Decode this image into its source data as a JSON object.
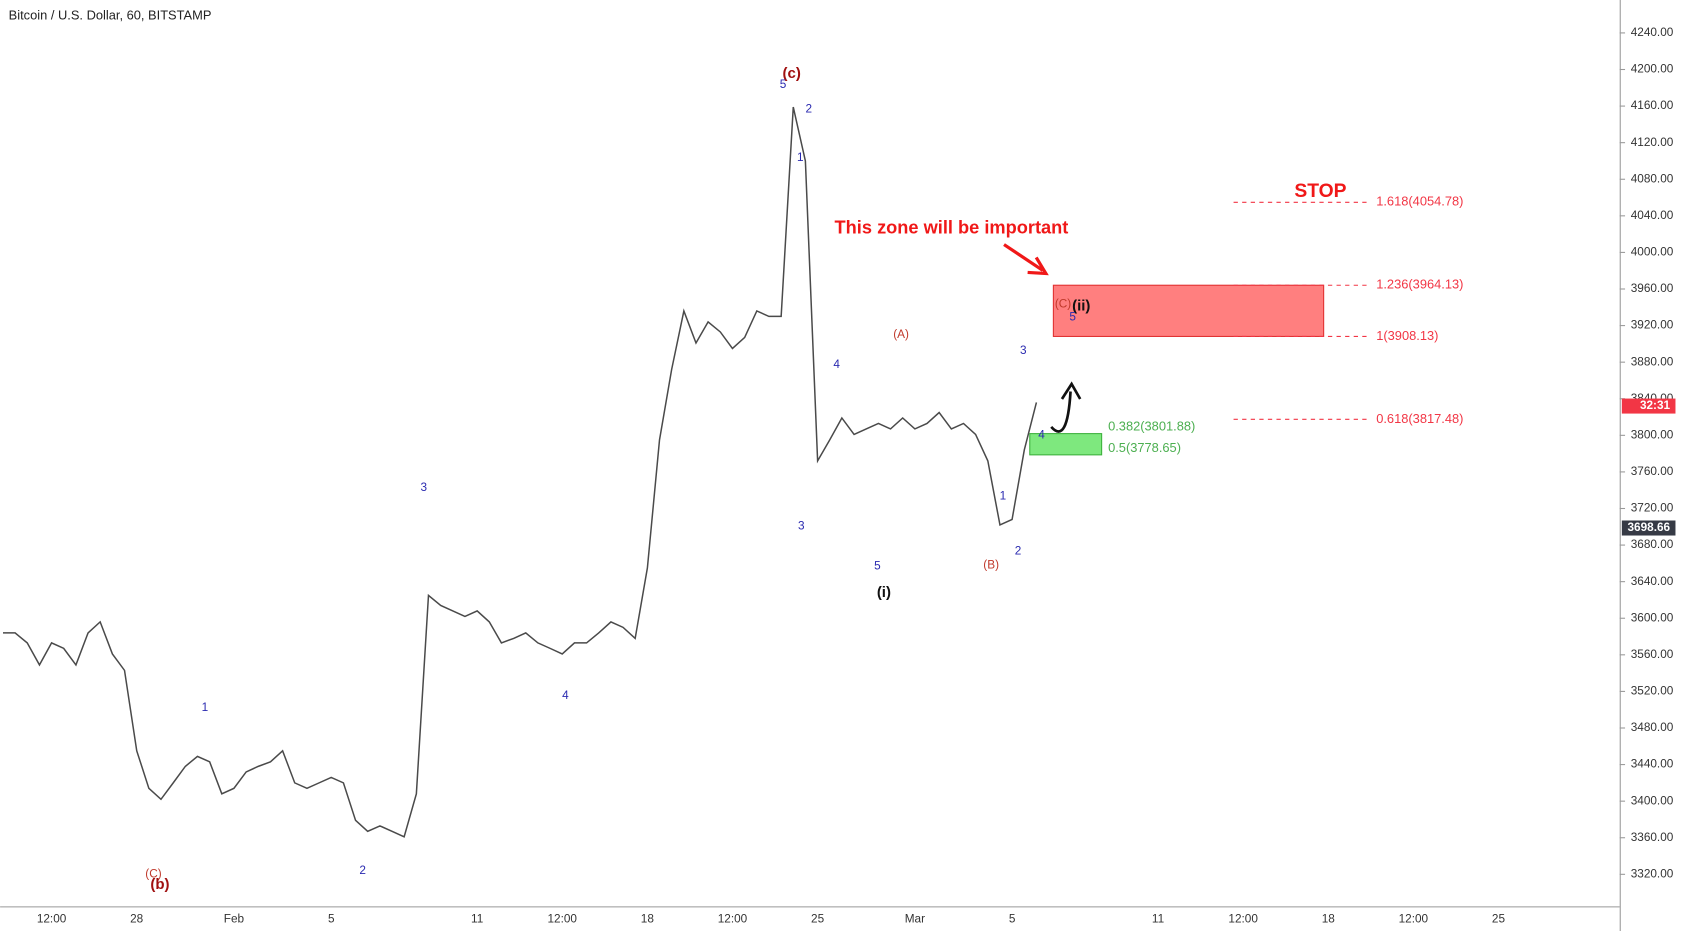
{
  "chart_data": {
    "type": "line",
    "title": "Bitcoin / U.S. Dollar, 60, BITSTAMP",
    "categories": [
      null,
      null,
      null,
      null,
      "12:00",
      null,
      null,
      null,
      null,
      null,
      null,
      "28",
      null,
      null,
      null,
      null,
      null,
      null,
      null,
      "Feb",
      null,
      null,
      null,
      null,
      null,
      null,
      null,
      "5",
      null,
      null,
      null,
      null,
      null,
      null,
      null,
      null,
      null,
      null,
      null,
      "11",
      null,
      null,
      null,
      null,
      null,
      null,
      "12:00",
      null,
      null,
      null,
      null,
      null,
      null,
      "18",
      null,
      null,
      null,
      null,
      null,
      null,
      "12:00",
      null,
      null,
      null,
      null,
      null,
      null,
      "25",
      null,
      null,
      null,
      null,
      null,
      null,
      null,
      "Mar",
      null,
      null,
      null,
      null,
      null,
      null,
      null,
      "5",
      null,
      null,
      null,
      null,
      null,
      null,
      null,
      null,
      null,
      null,
      null,
      "11",
      null,
      null,
      null,
      null,
      null,
      null,
      "12:00",
      null,
      null,
      null,
      null,
      null,
      null,
      "18",
      null,
      null,
      null,
      null,
      null,
      null,
      "12:00",
      null,
      null,
      null,
      null,
      null,
      null,
      "25",
      null,
      null,
      null,
      null,
      null,
      null,
      null,
      null,
      null,
      null
    ],
    "values": [
      3584,
      3584,
      3573,
      3549,
      3573,
      3567,
      3549,
      3584,
      3596,
      3561,
      3543,
      3455,
      3414,
      3402,
      3420,
      3438,
      3449,
      3443,
      3408,
      3414,
      3432,
      3438,
      3443,
      3455,
      3420,
      3414,
      3420,
      3426,
      3420,
      3379,
      3367,
      3373,
      3367,
      3361,
      3408,
      3625,
      3614,
      3608,
      3602,
      3608,
      3596,
      3573,
      3578,
      3584,
      3573,
      3567,
      3561,
      3573,
      3573,
      3584,
      3596,
      3590,
      3578,
      3655,
      3795,
      3872,
      3936,
      3901,
      3924,
      3913,
      3895,
      3907,
      3936,
      3930,
      3930,
      4159,
      4100,
      3772,
      3795,
      3819,
      3801,
      3807,
      3813,
      3807,
      3819,
      3807,
      3813,
      3825,
      3807,
      3813,
      3801,
      3772,
      3702,
      3708,
      3784,
      3836,
      null,
      null,
      null,
      null,
      null,
      null,
      null,
      null,
      null,
      null,
      null,
      null,
      null,
      null,
      null,
      null,
      null,
      null,
      null,
      null,
      null,
      null,
      null,
      null,
      null,
      null,
      null,
      null,
      null,
      null,
      null,
      null,
      null,
      null,
      null,
      null,
      null,
      null,
      null,
      null,
      null,
      null,
      null,
      null,
      null,
      null,
      null,
      null
    ],
    "color": "#4a4a4a",
    "ylim": [
      3285,
      4276
    ],
    "yticks": [
      {
        "value": 3320,
        "label": "3320.00"
      },
      {
        "value": 3360,
        "label": "3360.00"
      },
      {
        "value": 3400,
        "label": "3400.00"
      },
      {
        "value": 3440,
        "label": "3440.00"
      },
      {
        "value": 3480,
        "label": "3480.00"
      },
      {
        "value": 3520,
        "label": "3520.00"
      },
      {
        "value": 3560,
        "label": "3560.00"
      },
      {
        "value": 3600,
        "label": "3600.00"
      },
      {
        "value": 3640,
        "label": "3640.00"
      },
      {
        "value": 3680,
        "label": "3680.00"
      },
      {
        "value": 3720,
        "label": "3720.00"
      },
      {
        "value": 3760,
        "label": "3760.00"
      },
      {
        "value": 3800,
        "label": "3800.00"
      },
      {
        "value": 3840,
        "label": "3840.00"
      },
      {
        "value": 3880,
        "label": "3880.00"
      },
      {
        "value": 3920,
        "label": "3920.00"
      },
      {
        "value": 3960,
        "label": "3960.00"
      },
      {
        "value": 4000,
        "label": "4000.00"
      },
      {
        "value": 4040,
        "label": "4040.00"
      },
      {
        "value": 4080,
        "label": "4080.00"
      },
      {
        "value": 4120,
        "label": "4120.00"
      },
      {
        "value": 4160,
        "label": "4160.00"
      },
      {
        "value": 4200,
        "label": "4200.00"
      },
      {
        "value": 4240,
        "label": "4240.00"
      }
    ],
    "price_badges": [
      {
        "value": 3832,
        "label": "32:31",
        "color": "#f23645"
      },
      {
        "value": 3698.66,
        "label": "3698.66",
        "color": "#363a45"
      }
    ],
    "fib_levels": [
      {
        "value": 4054.78,
        "label": "1.618(4054.78)",
        "color": "#f23645"
      },
      {
        "value": 3964.13,
        "label": "1.236(3964.13)",
        "color": "#f23645"
      },
      {
        "value": 3908.13,
        "label": "1(3908.13)",
        "color": "#f23645"
      },
      {
        "value": 3817.48,
        "label": "0.618(3817.48)",
        "color": "#f23645"
      },
      {
        "value": 3801.88,
        "label": "0.382(3801.88)",
        "color": "#4caf50"
      },
      {
        "value": 3778.65,
        "label": "0.5(3778.65)",
        "color": "#4caf50"
      }
    ],
    "zone_color": "#ff7f7f",
    "support_color": "#7ee87e",
    "annotations": [
      "This zone will be important",
      "STOP"
    ],
    "wave_labels": [
      "(c)",
      "5",
      "2",
      "1",
      "3",
      "4",
      "(A)",
      "5",
      "(i)",
      "(B)",
      "1",
      "2",
      "3",
      "4",
      "(C)",
      "(ii)",
      "5",
      "1",
      "3",
      "2",
      "4",
      "(C)",
      "(b)"
    ]
  }
}
